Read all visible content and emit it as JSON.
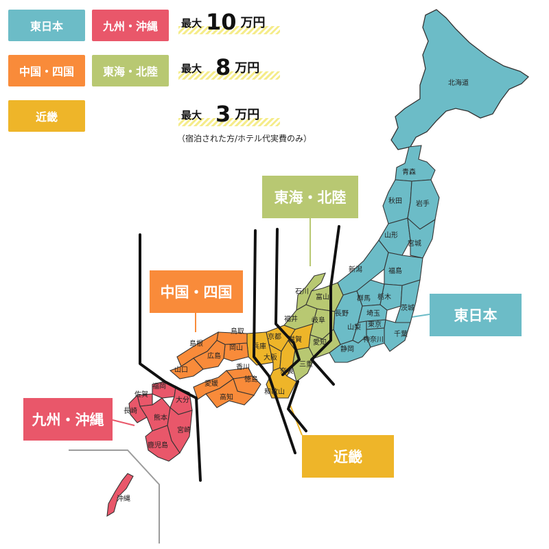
{
  "colors": {
    "east": "#6cbcc7",
    "kyushu": "#e9576a",
    "chugoku": "#f98b3a",
    "tokai": "#b8c872",
    "kinki": "#eeb529"
  },
  "legend": {
    "east": "東日本",
    "kyushu": "九州・沖縄",
    "chugoku": "中国・四国",
    "tokai": "東海・北陸",
    "kinki": "近畿"
  },
  "rewards": [
    {
      "prefix": "最大",
      "amount": "10",
      "unit": "万円"
    },
    {
      "prefix": "最大",
      "amount": "8",
      "unit": "万円"
    },
    {
      "prefix": "最大",
      "amount": "3",
      "unit": "万円"
    }
  ],
  "note": "（宿泊された方/ホテル代実費のみ）",
  "callouts": {
    "tokai": "東海・北陸",
    "chugoku": "中国・四国",
    "east": "東日本",
    "kyushu": "九州・沖縄",
    "kinki": "近畿"
  },
  "prefectures": [
    {
      "name": "北海道",
      "region": "east"
    },
    {
      "name": "青森",
      "region": "east"
    },
    {
      "name": "秋田",
      "region": "east"
    },
    {
      "name": "岩手",
      "region": "east"
    },
    {
      "name": "山形",
      "region": "east"
    },
    {
      "name": "宮城",
      "region": "east"
    },
    {
      "name": "新潟",
      "region": "east"
    },
    {
      "name": "福島",
      "region": "east"
    },
    {
      "name": "群馬",
      "region": "east"
    },
    {
      "name": "栃木",
      "region": "east"
    },
    {
      "name": "茨城",
      "region": "east"
    },
    {
      "name": "長野",
      "region": "east"
    },
    {
      "name": "埼玉",
      "region": "east"
    },
    {
      "name": "東京",
      "region": "east"
    },
    {
      "name": "山梨",
      "region": "east"
    },
    {
      "name": "神奈川",
      "region": "east"
    },
    {
      "name": "千葉",
      "region": "east"
    },
    {
      "name": "静岡",
      "region": "east"
    },
    {
      "name": "石川",
      "region": "tokai"
    },
    {
      "name": "富山",
      "region": "tokai"
    },
    {
      "name": "福井",
      "region": "tokai"
    },
    {
      "name": "岐阜",
      "region": "tokai"
    },
    {
      "name": "愛知",
      "region": "tokai"
    },
    {
      "name": "三重",
      "region": "tokai"
    },
    {
      "name": "滋賀",
      "region": "kinki"
    },
    {
      "name": "京都",
      "region": "kinki"
    },
    {
      "name": "兵庫",
      "region": "kinki"
    },
    {
      "name": "大阪",
      "region": "kinki"
    },
    {
      "name": "奈良",
      "region": "kinki"
    },
    {
      "name": "和歌山",
      "region": "kinki"
    },
    {
      "name": "鳥取",
      "region": "chugoku"
    },
    {
      "name": "島根",
      "region": "chugoku"
    },
    {
      "name": "岡山",
      "region": "chugoku"
    },
    {
      "name": "広島",
      "region": "chugoku"
    },
    {
      "name": "山口",
      "region": "chugoku"
    },
    {
      "name": "香川",
      "region": "chugoku"
    },
    {
      "name": "徳島",
      "region": "chugoku"
    },
    {
      "name": "愛媛",
      "region": "chugoku"
    },
    {
      "name": "高知",
      "region": "chugoku"
    },
    {
      "name": "福岡",
      "region": "kyushu"
    },
    {
      "name": "佐賀",
      "region": "kyushu"
    },
    {
      "name": "大分",
      "region": "kyushu"
    },
    {
      "name": "長崎",
      "region": "kyushu"
    },
    {
      "name": "熊本",
      "region": "kyushu"
    },
    {
      "name": "宮崎",
      "region": "kyushu"
    },
    {
      "name": "鹿児島",
      "region": "kyushu"
    },
    {
      "name": "沖縄",
      "region": "kyushu"
    }
  ]
}
